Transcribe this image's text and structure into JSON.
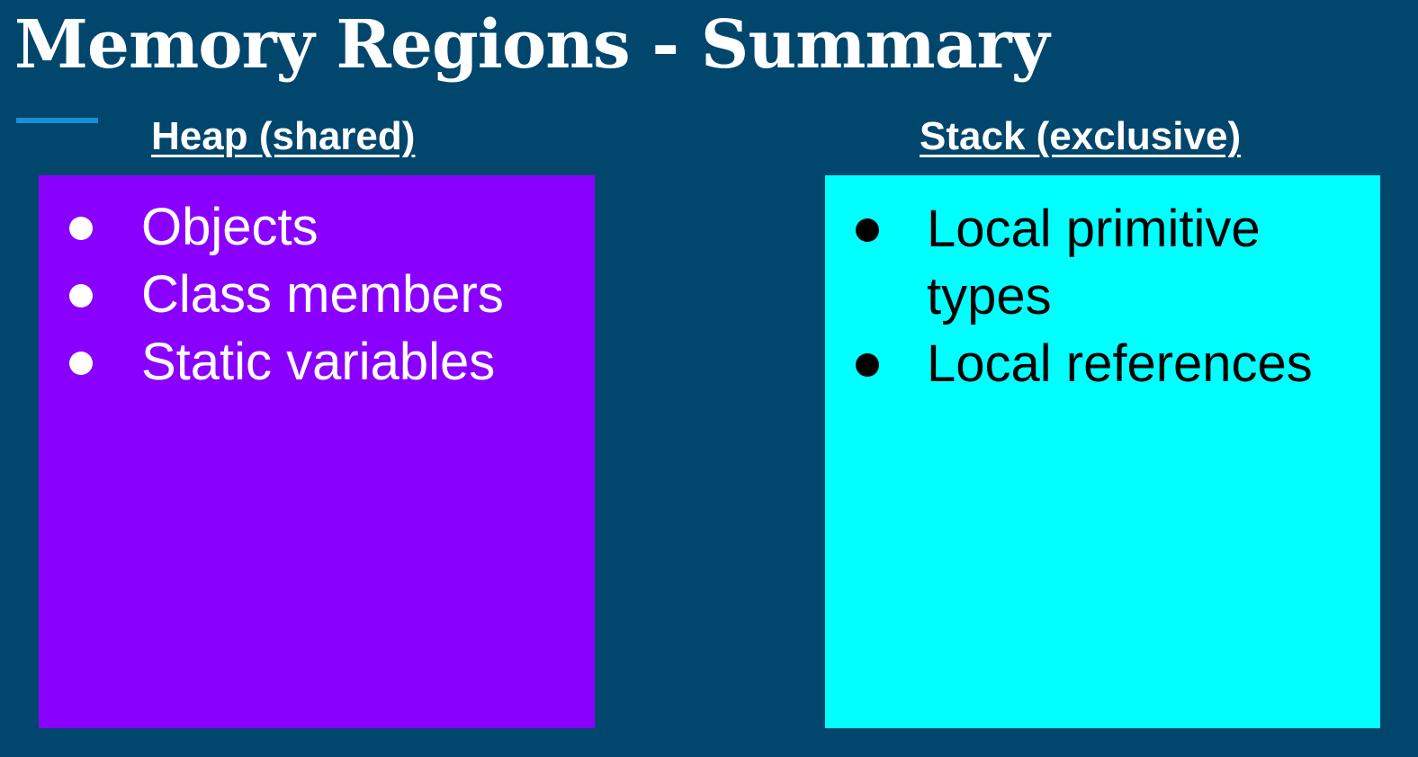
{
  "slide": {
    "title": "Memory Regions - Summary",
    "colors": {
      "background": "#01466d",
      "accent_line": "#1a8fd6",
      "heap_box": "#8a00ff",
      "stack_box": "#00ffff"
    }
  },
  "heap": {
    "heading": "Heap (shared)",
    "items": [
      "Objects",
      "Class members",
      "Static variables"
    ]
  },
  "stack": {
    "heading": "Stack (exclusive)",
    "items": [
      "Local primitive types",
      "Local references"
    ]
  }
}
